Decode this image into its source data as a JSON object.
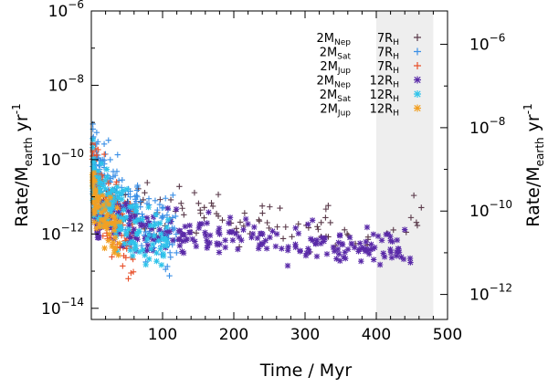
{
  "chart_data": {
    "type": "scatter",
    "xlabel": "Time / Myr",
    "ylabel_left": {
      "main": "Rate/M",
      "sub": "earth",
      "unit": " yr",
      "sup": "-1"
    },
    "ylabel_right": {
      "main": "Rate/M",
      "sub": "earth",
      "unit": " yr",
      "sup": "-1"
    },
    "xlim": [
      0,
      500
    ],
    "ylim_left_log10": [
      -14.3,
      -6
    ],
    "ylim_right_log10": [
      -12.6,
      -5.2
    ],
    "x_ticks": [
      100,
      200,
      300,
      400,
      500
    ],
    "x_tick_labels": [
      "100",
      "200",
      "300",
      "400",
      "500"
    ],
    "y_ticks_left_exp": [
      -14,
      -12,
      -10,
      -8,
      -6
    ],
    "y_ticks_right_exp": [
      -12,
      -10,
      -8,
      -6
    ],
    "y_tick_base": "10",
    "shaded_region_x": [
      400,
      480
    ],
    "legend_position": "top-right",
    "series": [
      {
        "mass_label": "2M",
        "mass_sub": "Nep",
        "radius_label": "7R",
        "radius_sub": "H",
        "marker": "+",
        "color": "#5a3a4a",
        "x_range": [
          2,
          470
        ],
        "y_center_log10": [
          -11.2,
          -11.8
        ],
        "spread": 0.6,
        "count": 110
      },
      {
        "mass_label": "2M",
        "mass_sub": "Sat",
        "radius_label": "7R",
        "radius_sub": "H",
        "marker": "+",
        "color": "#3a8fe6",
        "x_range": [
          2,
          120
        ],
        "y_center_log10": [
          -9.8,
          -12.0
        ],
        "spread": 0.8,
        "count": 220
      },
      {
        "mass_label": "2M",
        "mass_sub": "Jup",
        "radius_label": "7R",
        "radius_sub": "H",
        "marker": "+",
        "color": "#e8502a",
        "x_range": [
          1,
          60
        ],
        "y_center_log10": [
          -9.6,
          -12.3
        ],
        "spread": 0.9,
        "count": 120
      },
      {
        "mass_label": "2M",
        "mass_sub": "Nep",
        "radius_label": "12R",
        "radius_sub": "H",
        "marker": "*",
        "color": "#5a2aa8",
        "x_range": [
          5,
          450
        ],
        "y_center_log10": [
          -11.6,
          -12.4
        ],
        "spread": 0.45,
        "count": 260
      },
      {
        "mass_label": "2M",
        "mass_sub": "Sat",
        "radius_label": "12R",
        "radius_sub": "H",
        "marker": "*",
        "color": "#2ec3ea",
        "x_range": [
          2,
          110
        ],
        "y_center_log10": [
          -10.4,
          -12.3
        ],
        "spread": 0.7,
        "count": 160
      },
      {
        "mass_label": "2M",
        "mass_sub": "Jup",
        "radius_label": "12R",
        "radius_sub": "H",
        "marker": "*",
        "color": "#f2a023",
        "x_range": [
          1,
          40
        ],
        "y_center_log10": [
          -10.6,
          -12.0
        ],
        "spread": 0.7,
        "count": 70
      }
    ]
  }
}
